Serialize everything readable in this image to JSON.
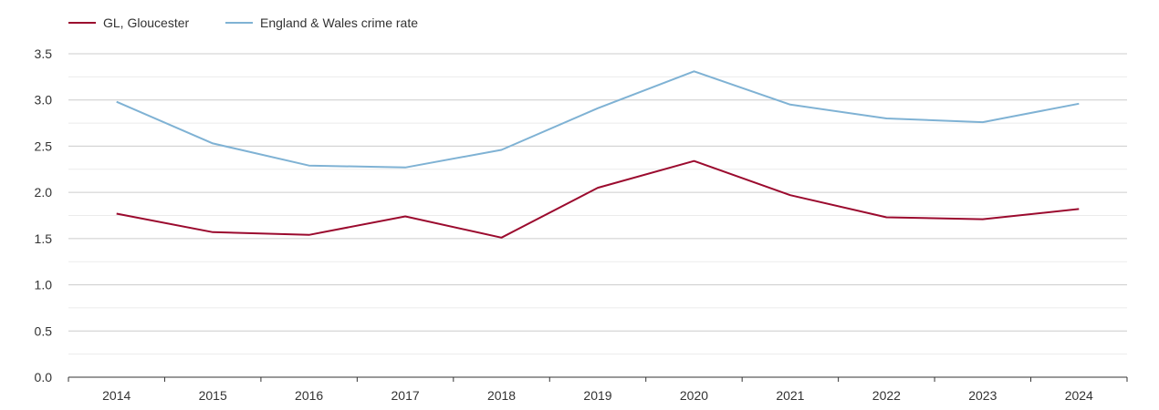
{
  "chart_data": {
    "type": "line",
    "title": "",
    "xlabel": "",
    "ylabel": "",
    "x": [
      "2014",
      "2015",
      "2016",
      "2017",
      "2018",
      "2019",
      "2020",
      "2021",
      "2022",
      "2023",
      "2024"
    ],
    "ylim": [
      0,
      3.5
    ],
    "yticks": [
      "0.0",
      "0.5",
      "1.0",
      "1.5",
      "2.0",
      "2.5",
      "3.0",
      "3.5"
    ],
    "grid": true,
    "legend_position": "top-left",
    "series": [
      {
        "name": "GL, Gloucester",
        "color": "#9b0a2e",
        "values": [
          1.77,
          1.57,
          1.54,
          1.74,
          1.51,
          2.05,
          2.34,
          1.97,
          1.73,
          1.71,
          1.82
        ]
      },
      {
        "name": "England & Wales crime rate",
        "color": "#7fb2d4",
        "values": [
          2.98,
          2.53,
          2.29,
          2.27,
          2.46,
          2.91,
          3.31,
          2.95,
          2.8,
          2.76,
          2.96
        ]
      }
    ]
  }
}
